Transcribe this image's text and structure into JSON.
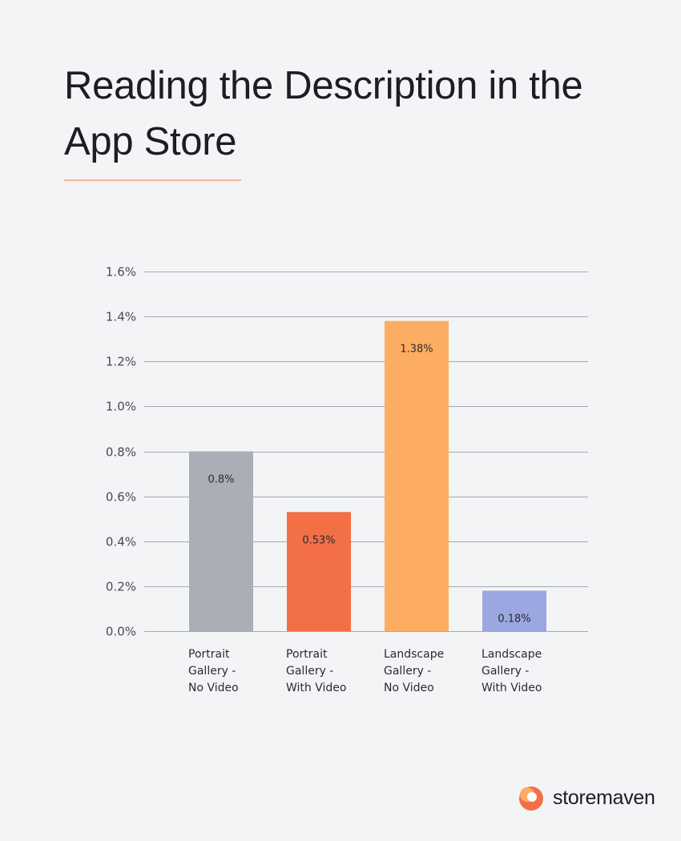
{
  "title": "Reading the Description in the App Store",
  "brand": {
    "name": "storemaven"
  },
  "colors": {
    "background": "#f3f4f6",
    "accent_rule": "#f5b98a",
    "grid": "#a7a9ae"
  },
  "chart_data": {
    "type": "bar",
    "categories": [
      [
        "Portrait",
        "Gallery -",
        "No Video"
      ],
      [
        "Portrait",
        "Gallery -",
        "With Video"
      ],
      [
        "Landscape",
        "Gallery -",
        "No Video"
      ],
      [
        "Landscape",
        "Gallery -",
        "With Video"
      ]
    ],
    "values": [
      0.8,
      0.53,
      1.38,
      0.18
    ],
    "data_labels": [
      "0.8%",
      "0.53%",
      "1.38%",
      "0.18%"
    ],
    "bar_colors": [
      "#abaeb6",
      "#f36f46",
      "#fdad62",
      "#9ba7e0"
    ],
    "yticks": [
      0.0,
      0.2,
      0.4,
      0.6,
      0.8,
      1.0,
      1.2,
      1.4,
      1.6
    ],
    "ytick_labels": [
      "0.0%",
      "0.2%",
      "0.4%",
      "0.6%",
      "0.8%",
      "1.0%",
      "1.2%",
      "1.4%",
      "1.6%"
    ],
    "ylim": [
      0,
      1.6
    ],
    "grid": true,
    "legend": false
  }
}
